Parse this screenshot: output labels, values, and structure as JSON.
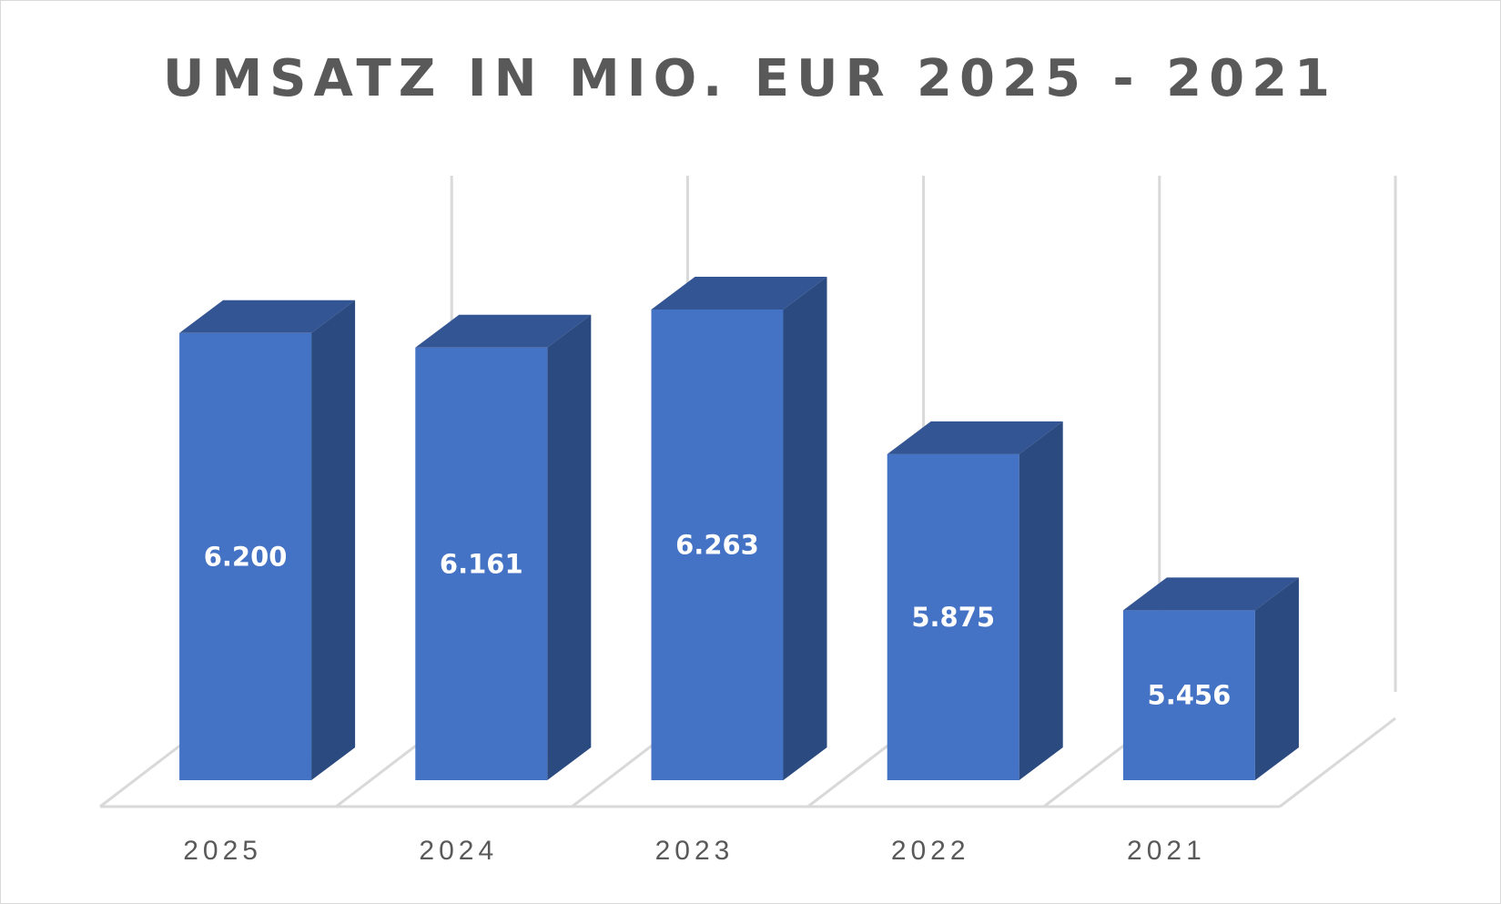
{
  "chart_data": {
    "type": "bar",
    "style": "3d-column",
    "title": "UMSATZ IN MIO. EUR 2025 - 2021",
    "xlabel": "",
    "ylabel": "",
    "categories": [
      "2025",
      "2024",
      "2023",
      "2022",
      "2021"
    ],
    "values": [
      6200,
      6161,
      6263,
      5875,
      5456
    ],
    "data_labels": [
      "6.200",
      "6.161",
      "6.263",
      "5.875",
      "5.456"
    ],
    "ylim": [
      5000,
      6500
    ],
    "grid": true,
    "legend": "none",
    "colors": {
      "front": "#4472c4",
      "top": "#335593",
      "side": "#2b4a80",
      "grid": "#d9d9d9",
      "text": "#595959",
      "label": "#ffffff"
    }
  }
}
